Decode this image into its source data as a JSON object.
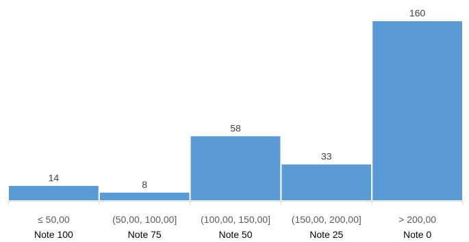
{
  "chart_data": {
    "type": "bar",
    "title": "",
    "xlabel": "",
    "ylabel": "",
    "categories": [
      "≤ 50,00",
      "(50,00, 100,00]",
      "(100,00, 150,00]",
      "(150,00, 200,00]",
      "> 200,00"
    ],
    "notes": [
      "Note 100",
      "Note 75",
      "Note 50",
      "Note 25",
      "Note 0"
    ],
    "values": [
      14,
      8,
      58,
      33,
      160
    ],
    "ylim": [
      0,
      160
    ],
    "grid": false,
    "legend": "none",
    "bar_color": "#5b9bd5"
  }
}
